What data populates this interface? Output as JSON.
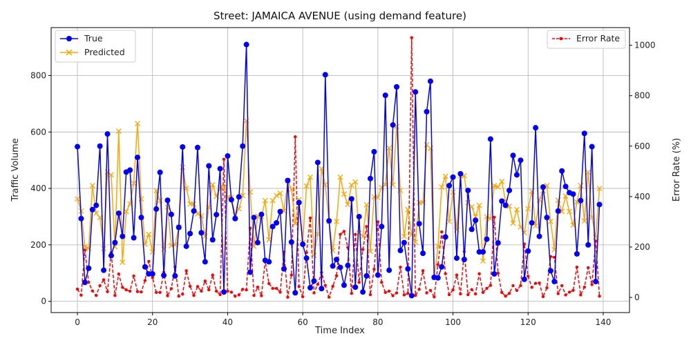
{
  "chart_data": {
    "type": "line",
    "title": "Street: JAMAICA AVENUE (using demand feature)",
    "xlabel": "Time Index",
    "ylabel": "Traffic Volume",
    "y2label": "Error Rate (%)",
    "xlim": [
      -7,
      147
    ],
    "ylim": [
      -40,
      970
    ],
    "y2lim": [
      -60,
      1070
    ],
    "xticks": [
      0,
      20,
      40,
      60,
      80,
      100,
      120,
      140
    ],
    "yticks": [
      0,
      200,
      400,
      600,
      800
    ],
    "y2ticks": [
      0,
      200,
      400,
      600,
      800,
      1000
    ],
    "grid": true,
    "legend_left": "upper-left",
    "legend_right": "upper-right",
    "series": [
      {
        "name": "True",
        "axis": "left",
        "color": "#0000ff",
        "marker": "circle",
        "linestyle": "solid",
        "values": [
          548,
          293,
          67,
          117,
          325,
          340,
          550,
          110,
          593,
          162,
          208,
          312,
          230,
          458,
          465,
          225,
          510,
          297,
          122,
          97,
          97,
          327,
          457,
          92,
          358,
          308,
          90,
          262,
          547,
          195,
          240,
          320,
          545,
          243,
          140,
          480,
          218,
          307,
          470,
          33,
          515,
          360,
          293,
          370,
          550,
          910,
          103,
          297,
          208,
          308,
          145,
          140,
          265,
          278,
          318,
          115,
          428,
          210,
          30,
          350,
          202,
          153,
          48,
          72,
          492,
          45,
          803,
          285,
          125,
          148,
          120,
          57,
          127,
          363,
          50,
          300,
          33,
          90,
          435,
          530,
          93,
          265,
          730,
          110,
          625,
          760,
          180,
          208,
          115,
          20,
          742,
          275,
          170,
          672,
          780,
          85,
          83,
          122,
          228,
          410,
          440,
          153,
          452,
          148,
          393,
          255,
          287,
          175,
          175,
          220,
          575,
          97,
          207,
          355,
          340,
          393,
          517,
          448,
          500,
          78,
          178,
          278,
          615,
          230,
          405,
          297,
          108,
          70,
          320,
          462,
          407,
          385,
          380,
          168,
          357,
          595,
          200,
          548,
          70,
          343
        ]
      },
      {
        "name": "Predicted",
        "axis": "left",
        "color": "#ffa500",
        "marker": "x",
        "linestyle": "solid",
        "values": [
          363,
          320,
          193,
          187,
          410,
          312,
          297,
          187,
          458,
          448,
          193,
          603,
          138,
          318,
          345,
          418,
          630,
          363,
          202,
          237,
          175,
          392,
          357,
          185,
          333,
          197,
          200,
          263,
          475,
          400,
          345,
          345,
          310,
          303,
          230,
          333,
          413,
          372,
          402,
          403,
          368,
          368,
          307,
          328,
          375,
          640,
          387,
          195,
          302,
          300,
          357,
          218,
          357,
          375,
          383,
          320,
          427,
          397,
          275,
          360,
          208,
          408,
          440,
          162,
          238,
          470,
          413,
          283,
          180,
          283,
          440,
          380,
          343,
          412,
          423,
          242,
          230,
          342,
          177,
          370,
          368,
          403,
          413,
          543,
          412,
          620,
          393,
          230,
          325,
          237,
          210,
          350,
          350,
          555,
          542,
          83,
          195,
          405,
          443,
          283,
          387,
          253,
          445,
          445,
          350,
          335,
          300,
          340,
          143,
          300,
          293,
          410,
          405,
          425,
          355,
          337,
          277,
          325,
          263,
          243,
          328,
          390,
          267,
          360,
          392,
          410,
          283,
          183,
          358,
          318,
          373,
          318,
          270,
          352,
          410,
          285,
          457,
          298,
          227,
          400
        ]
      },
      {
        "name": "Error Rate",
        "axis": "right",
        "color": "#ff0000",
        "marker": "point",
        "linestyle": "dashed",
        "values": [
          33,
          9,
          188,
          60,
          26,
          8,
          47,
          70,
          23,
          178,
          8,
          93,
          40,
          30,
          25,
          85,
          23,
          22,
          67,
          143,
          79,
          20,
          20,
          100,
          7,
          35,
          121,
          5,
          13,
          106,
          44,
          8,
          43,
          25,
          65,
          30,
          89,
          25,
          11,
          548,
          25,
          21,
          5,
          10,
          32,
          30,
          275,
          8,
          41,
          7,
          145,
          55,
          36,
          36,
          21,
          180,
          1,
          89,
          637,
          43,
          3,
          178,
          315,
          18,
          52,
          99,
          48,
          1,
          44,
          86,
          250,
          262,
          198,
          16,
          250,
          60,
          190,
          281,
          11,
          112,
          300,
          60,
          20,
          25,
          7,
          18,
          120,
          10,
          16,
          1030,
          8,
          32,
          106,
          18,
          28,
          2,
          130,
          260,
          94,
          11,
          30,
          89,
          14,
          182,
          11,
          31,
          14,
          94,
          20,
          36,
          48,
          318,
          96,
          20,
          5,
          16,
          47,
          28,
          47,
          212,
          84,
          40,
          56,
          57,
          3,
          38,
          162,
          159,
          15,
          47,
          10,
          21,
          28,
          120,
          10,
          41,
          118,
          51,
          224,
          5
        ]
      }
    ]
  }
}
